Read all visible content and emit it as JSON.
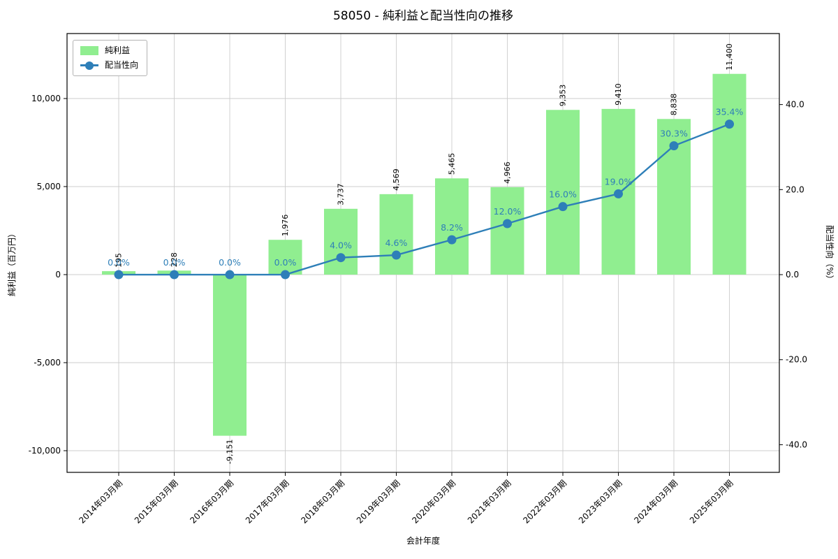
{
  "title": "58050 - 純利益と配当性向の推移",
  "legend": {
    "items": [
      {
        "label": "純利益"
      },
      {
        "label": "配当性向"
      }
    ]
  },
  "chart_data": {
    "type": "bar+line",
    "title": "58050 - 純利益と配当性向の推移",
    "xlabel": "会計年度",
    "ylabel_left": "純利益（百万円）",
    "ylabel_right": "配当性向（%）",
    "categories": [
      "2014年03月期",
      "2015年03月期",
      "2016年03月期",
      "2017年03月期",
      "2018年03月期",
      "2019年03月期",
      "2020年03月期",
      "2021年03月期",
      "2022年03月期",
      "2023年03月期",
      "2024年03月期",
      "2025年03月期"
    ],
    "series": [
      {
        "name": "純利益",
        "type": "bar",
        "axis": "left",
        "color": "#90ee90",
        "values": [
          195,
          228,
          -9151,
          1976,
          3737,
          4569,
          5465,
          4966,
          9353,
          9410,
          8838,
          11400
        ],
        "labels": [
          "195",
          "228",
          "-9,151",
          "1,976",
          "3,737",
          "4,569",
          "5,465",
          "4,966",
          "9,353",
          "9,410",
          "8,838",
          "11,400"
        ]
      },
      {
        "name": "配当性向",
        "type": "line",
        "axis": "right",
        "color": "#2e7fb8",
        "values": [
          0.0,
          0.0,
          0.0,
          0.0,
          4.0,
          4.6,
          8.2,
          12.0,
          16.0,
          19.0,
          30.3,
          35.4
        ],
        "labels": [
          "0.0%",
          "0.0%",
          "0.0%",
          "0.0%",
          "4.0%",
          "4.6%",
          "8.2%",
          "12.0%",
          "16.0%",
          "19.0%",
          "30.3%",
          "35.4%"
        ]
      }
    ],
    "left_axis": {
      "ticks": [
        10000,
        5000,
        0,
        -5000,
        -10000
      ],
      "tick_labels": [
        "10,000",
        "5,000",
        "0",
        "-5,000",
        "-10,000"
      ],
      "lim": [
        -11230,
        13690
      ]
    },
    "right_axis": {
      "ticks": [
        40,
        20,
        0,
        -20,
        -40
      ],
      "tick_labels": [
        "40.0",
        "20.0",
        "0.0",
        "-20.0",
        "-40.0"
      ],
      "lim": [
        -46.5,
        56.7
      ]
    },
    "grid": true,
    "legend_position": "upper left",
    "colors": {
      "bar": "#90ee90",
      "line": "#2e7fb8",
      "grid": "#cccccc",
      "axis": "#000000",
      "pct_label": "#2e7fb8",
      "bar_label": "#000000"
    }
  }
}
